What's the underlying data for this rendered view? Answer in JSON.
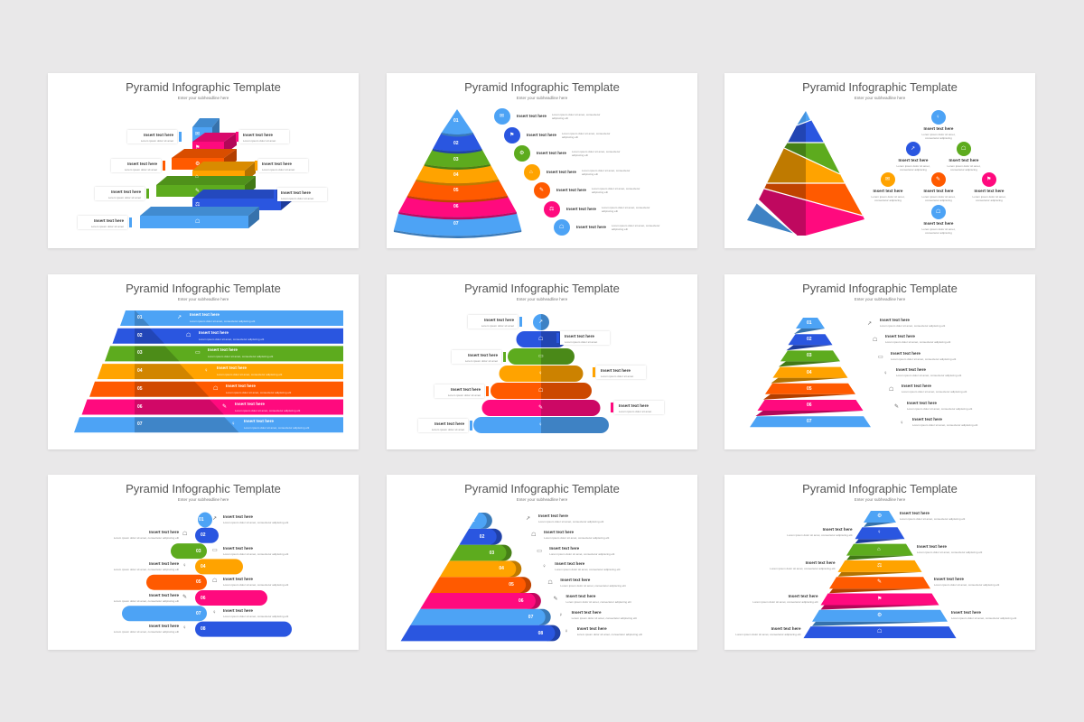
{
  "colors": {
    "light_blue": "#4da3f5",
    "blue": "#2a56e0",
    "green": "#5dab1e",
    "yellow": "#ffa300",
    "orange": "#ff5a00",
    "pink": "#ff0a7e",
    "background": "#e9e8e9"
  },
  "slides": [
    {
      "title": "Pyramid Infographic Template",
      "subtitle": "Enter your subheadline here",
      "layout": "3d-stairs",
      "items": [
        {
          "label": "Insert text here",
          "desc": "Lorem ipsum dolor sit amet"
        },
        {
          "label": "Insert text here",
          "desc": "Lorem ipsum dolor sit amet"
        },
        {
          "label": "Insert text here",
          "desc": "Lorem ipsum dolor sit amet"
        },
        {
          "label": "Insert text here",
          "desc": "Lorem ipsum dolor sit amet"
        },
        {
          "label": "Insert text here",
          "desc": "Lorem ipsum dolor sit amet"
        },
        {
          "label": "Insert text here",
          "desc": "Lorem ipsum dolor sit amet"
        },
        {
          "label": "Insert text here",
          "desc": "Lorem ipsum dolor sit amet"
        }
      ]
    },
    {
      "title": "Pyramid Infographic Template",
      "subtitle": "Enter your subheadline here",
      "layout": "cone-arcs",
      "numbers": [
        "01",
        "02",
        "03",
        "04",
        "05",
        "06",
        "07"
      ],
      "items": [
        {
          "label": "Insert text here",
          "desc": "Lorem ipsum dolor sit amet, consectetur adipiscing elit"
        },
        {
          "label": "Insert text here",
          "desc": "Lorem ipsum dolor sit amet, consectetur adipiscing elit"
        },
        {
          "label": "Insert text here",
          "desc": "Lorem ipsum dolor sit amet, consectetur adipiscing elit"
        },
        {
          "label": "Insert text here",
          "desc": "Lorem ipsum dolor sit amet, consectetur adipiscing elit"
        },
        {
          "label": "Insert text here",
          "desc": "Lorem ipsum dolor sit amet, consectetur adipiscing elit"
        },
        {
          "label": "Insert text here",
          "desc": "Lorem ipsum dolor sit amet, consectetur adipiscing elit"
        },
        {
          "label": "Insert text here",
          "desc": "Lorem ipsum dolor sit amet, consectetur adipiscing elit"
        }
      ]
    },
    {
      "title": "Pyramid Infographic Template",
      "subtitle": "Enter your subheadline here",
      "layout": "3d-pyramid-tree",
      "items": [
        {
          "label": "Insert text here",
          "desc": "Lorem ipsum dolor sit amet, consectetur adipiscing"
        },
        {
          "label": "Insert text here",
          "desc": "Lorem ipsum dolor sit amet, consectetur adipiscing"
        },
        {
          "label": "Insert text here",
          "desc": "Lorem ipsum dolor sit amet, consectetur adipiscing"
        },
        {
          "label": "Insert text here",
          "desc": "Lorem ipsum dolor sit amet, consectetur adipiscing"
        },
        {
          "label": "Insert text here",
          "desc": "Lorem ipsum dolor sit amet, consectetur adipiscing"
        },
        {
          "label": "Insert text here",
          "desc": "Lorem ipsum dolor sit amet, consectetur adipiscing"
        },
        {
          "label": "Insert text here",
          "desc": "Lorem ipsum dolor sit amet, consectetur adipiscing"
        }
      ]
    },
    {
      "title": "Pyramid Infographic Template",
      "subtitle": "Enter your subheadline here",
      "layout": "wide-bands",
      "numbers": [
        "01",
        "02",
        "03",
        "04",
        "05",
        "06",
        "07"
      ],
      "items": [
        {
          "label": "Insert text here",
          "desc": "Lorem ipsum dolor sit amet, consectetur adipiscing elit"
        },
        {
          "label": "Insert text here",
          "desc": "Lorem ipsum dolor sit amet, consectetur adipiscing elit"
        },
        {
          "label": "Insert text here",
          "desc": "Lorem ipsum dolor sit amet, consectetur adipiscing elit"
        },
        {
          "label": "Insert text here",
          "desc": "Lorem ipsum dolor sit amet, consectetur adipiscing elit"
        },
        {
          "label": "Insert text here",
          "desc": "Lorem ipsum dolor sit amet, consectetur adipiscing elit"
        },
        {
          "label": "Insert text here",
          "desc": "Lorem ipsum dolor sit amet, consectetur adipiscing elit"
        },
        {
          "label": "Insert text here",
          "desc": "Lorem ipsum dolor sit amet, consectetur adipiscing elit"
        }
      ]
    },
    {
      "title": "Pyramid Infographic Template",
      "subtitle": "Enter your subheadline here",
      "layout": "stacked-pills",
      "items": [
        {
          "label": "Insert text here",
          "desc": "Lorem ipsum dolor sit amet"
        },
        {
          "label": "Insert text here",
          "desc": "Lorem ipsum dolor sit amet"
        },
        {
          "label": "Insert text here",
          "desc": "Lorem ipsum dolor sit amet"
        },
        {
          "label": "Insert text here",
          "desc": "Lorem ipsum dolor sit amet"
        },
        {
          "label": "Insert text here",
          "desc": "Lorem ipsum dolor sit amet"
        },
        {
          "label": "Insert text here",
          "desc": "Lorem ipsum dolor sit amet"
        },
        {
          "label": "Insert text here",
          "desc": "Lorem ipsum dolor sit amet"
        }
      ]
    },
    {
      "title": "Pyramid Infographic Template",
      "subtitle": "Enter your subheadline here",
      "layout": "folded-ribbons",
      "numbers": [
        "01",
        "02",
        "03",
        "04",
        "05",
        "06",
        "07"
      ],
      "items": [
        {
          "label": "Insert text here",
          "desc": "Lorem ipsum dolor sit amet, consectetur adipiscing elit"
        },
        {
          "label": "Insert text here",
          "desc": "Lorem ipsum dolor sit amet, consectetur adipiscing elit"
        },
        {
          "label": "Insert text here",
          "desc": "Lorem ipsum dolor sit amet, consectetur adipiscing elit"
        },
        {
          "label": "Insert text here",
          "desc": "Lorem ipsum dolor sit amet, consectetur adipiscing elit"
        },
        {
          "label": "Insert text here",
          "desc": "Lorem ipsum dolor sit amet, consectetur adipiscing elit"
        },
        {
          "label": "Insert text here",
          "desc": "Lorem ipsum dolor sit amet, consectetur adipiscing elit"
        },
        {
          "label": "Insert text here",
          "desc": "Lorem ipsum dolor sit amet, consectetur adipiscing elit"
        }
      ]
    },
    {
      "title": "Pyramid Infographic Template",
      "subtitle": "Enter your subheadline here",
      "layout": "alternating-pills",
      "numbers": [
        "01",
        "02",
        "03",
        "04",
        "05",
        "06",
        "07",
        "08"
      ],
      "items": [
        {
          "label": "Insert text here",
          "desc": "Lorem ipsum dolor sit amet, consectetur adipiscing elit"
        },
        {
          "label": "Insert text here",
          "desc": "Lorem ipsum dolor sit amet, consectetur adipiscing elit"
        },
        {
          "label": "Insert text here",
          "desc": "Lorem ipsum dolor sit amet, consectetur adipiscing elit"
        },
        {
          "label": "Insert text here",
          "desc": "Lorem ipsum dolor sit amet, consectetur adipiscing elit"
        },
        {
          "label": "Insert text here",
          "desc": "Lorem ipsum dolor sit amet, consectetur adipiscing elit"
        },
        {
          "label": "Insert text here",
          "desc": "Lorem ipsum dolor sit amet, consectetur adipiscing elit"
        },
        {
          "label": "Insert text here",
          "desc": "Lorem ipsum dolor sit amet, consectetur adipiscing elit"
        },
        {
          "label": "Insert text here",
          "desc": "Lorem ipsum dolor sit amet, consectetur adipiscing elit"
        }
      ]
    },
    {
      "title": "Pyramid Infographic Template",
      "subtitle": "Enter your subheadline here",
      "layout": "rounded-steps",
      "numbers": [
        "01",
        "02",
        "03",
        "04",
        "05",
        "06",
        "07",
        "08"
      ],
      "items": [
        {
          "label": "Insert text here",
          "desc": "Lorem ipsum dolor sit amet, consectetur adipiscing elit"
        },
        {
          "label": "Insert text here",
          "desc": "Lorem ipsum dolor sit amet, consectetur adipiscing elit"
        },
        {
          "label": "Insert text here",
          "desc": "Lorem ipsum dolor sit amet, consectetur adipiscing elit"
        },
        {
          "label": "Insert text here",
          "desc": "Lorem ipsum dolor sit amet, consectetur adipiscing elit"
        },
        {
          "label": "Insert text here",
          "desc": "Lorem ipsum dolor sit amet, consectetur adipiscing elit"
        },
        {
          "label": "Insert text here",
          "desc": "Lorem ipsum dolor sit amet, consectetur adipiscing elit"
        },
        {
          "label": "Insert text here",
          "desc": "Lorem ipsum dolor sit amet, consectetur adipiscing elit"
        },
        {
          "label": "Insert text here",
          "desc": "Lorem ipsum dolor sit amet, consectetur adipiscing elit"
        }
      ]
    },
    {
      "title": "Pyramid Infographic Template",
      "subtitle": "Enter your subheadline here",
      "layout": "folded-ribbons-icons",
      "items": [
        {
          "label": "Insert text here",
          "desc": "Lorem ipsum dolor sit amet, consectetur adipiscing elit"
        },
        {
          "label": "Insert text here",
          "desc": "Lorem ipsum dolor sit amet, consectetur adipiscing elit"
        },
        {
          "label": "Insert text here",
          "desc": "Lorem ipsum dolor sit amet, consectetur adipiscing elit"
        },
        {
          "label": "Insert text here",
          "desc": "Lorem ipsum dolor sit amet, consectetur adipiscing elit"
        },
        {
          "label": "Insert text here",
          "desc": "Lorem ipsum dolor sit amet, consectetur adipiscing elit"
        },
        {
          "label": "Insert text here",
          "desc": "Lorem ipsum dolor sit amet, consectetur adipiscing elit"
        },
        {
          "label": "Insert text here",
          "desc": "Lorem ipsum dolor sit amet, consectetur adipiscing elit"
        },
        {
          "label": "Insert text here",
          "desc": "Lorem ipsum dolor sit amet, consectetur adipiscing elit"
        }
      ]
    }
  ]
}
